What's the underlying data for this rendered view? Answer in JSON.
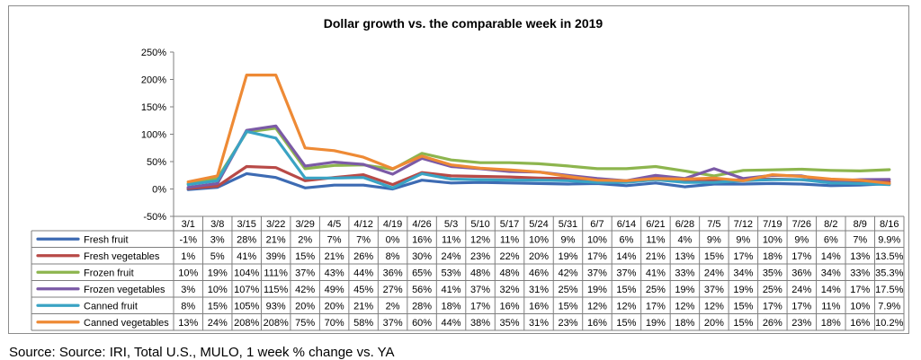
{
  "chart_data": {
    "type": "line",
    "title": "Dollar growth vs. the comparable week in 2019",
    "xlabel": "",
    "ylabel": "",
    "ylim": [
      -50,
      250
    ],
    "y_ticks": [
      "250%",
      "200%",
      "150%",
      "100%",
      "50%",
      "0%",
      "-50%"
    ],
    "y_tick_values": [
      250,
      200,
      150,
      100,
      50,
      0,
      -50
    ],
    "grid": false,
    "legend": "data-table-below",
    "categories": [
      "3/1",
      "3/8",
      "3/15",
      "3/22",
      "3/29",
      "4/5",
      "4/12",
      "4/19",
      "4/26",
      "5/3",
      "5/10",
      "5/17",
      "5/24",
      "5/31",
      "6/7",
      "6/14",
      "6/21",
      "6/28",
      "7/5",
      "7/12",
      "7/19",
      "7/26",
      "8/2",
      "8/9",
      "8/16"
    ],
    "series": [
      {
        "name": "Fresh fruit",
        "color": "#3d6bb3",
        "values": [
          -1,
          3,
          28,
          21,
          2,
          7,
          7,
          0,
          16,
          11,
          12,
          11,
          10,
          9,
          10,
          6,
          11,
          4,
          9,
          9,
          10,
          9,
          6,
          7,
          9.9
        ],
        "labels": [
          "-1%",
          "3%",
          "28%",
          "21%",
          "2%",
          "7%",
          "7%",
          "0%",
          "16%",
          "11%",
          "12%",
          "11%",
          "10%",
          "9%",
          "10%",
          "6%",
          "11%",
          "4%",
          "9%",
          "9%",
          "10%",
          "9%",
          "6%",
          "7%",
          "9.9%"
        ]
      },
      {
        "name": "Fresh vegetables",
        "color": "#b84a47",
        "values": [
          1,
          5,
          41,
          39,
          15,
          21,
          26,
          8,
          30,
          24,
          23,
          22,
          20,
          19,
          17,
          14,
          21,
          13,
          15,
          17,
          18,
          17,
          14,
          13,
          13.5
        ],
        "labels": [
          "1%",
          "5%",
          "41%",
          "39%",
          "15%",
          "21%",
          "26%",
          "8%",
          "30%",
          "24%",
          "23%",
          "22%",
          "20%",
          "19%",
          "17%",
          "14%",
          "21%",
          "13%",
          "15%",
          "17%",
          "18%",
          "17%",
          "14%",
          "13%",
          "13.5%"
        ]
      },
      {
        "name": "Frozen fruit",
        "color": "#8db54e",
        "values": [
          10,
          19,
          104,
          111,
          37,
          43,
          44,
          36,
          65,
          53,
          48,
          48,
          46,
          42,
          37,
          37,
          41,
          33,
          24,
          34,
          35,
          36,
          34,
          33,
          35.3
        ],
        "labels": [
          "10%",
          "19%",
          "104%",
          "111%",
          "37%",
          "43%",
          "44%",
          "36%",
          "65%",
          "53%",
          "48%",
          "48%",
          "46%",
          "42%",
          "37%",
          "37%",
          "41%",
          "33%",
          "24%",
          "34%",
          "35%",
          "36%",
          "34%",
          "33%",
          "35.3%"
        ]
      },
      {
        "name": "Frozen vegetables",
        "color": "#7b5aa6",
        "values": [
          3,
          10,
          107,
          115,
          42,
          49,
          45,
          27,
          56,
          41,
          37,
          32,
          31,
          25,
          19,
          15,
          25,
          19,
          37,
          19,
          25,
          24,
          14,
          17,
          17.5
        ],
        "labels": [
          "3%",
          "10%",
          "107%",
          "115%",
          "42%",
          "49%",
          "45%",
          "27%",
          "56%",
          "41%",
          "37%",
          "32%",
          "31%",
          "25%",
          "19%",
          "15%",
          "25%",
          "19%",
          "37%",
          "19%",
          "25%",
          "24%",
          "14%",
          "17%",
          "17.5%"
        ]
      },
      {
        "name": "Canned fruit",
        "color": "#3aa3c4",
        "values": [
          8,
          15,
          105,
          93,
          20,
          20,
          21,
          2,
          28,
          18,
          17,
          16,
          16,
          15,
          12,
          12,
          17,
          12,
          12,
          15,
          17,
          17,
          11,
          10,
          7.9
        ],
        "labels": [
          "8%",
          "15%",
          "105%",
          "93%",
          "20%",
          "20%",
          "21%",
          "2%",
          "28%",
          "18%",
          "17%",
          "16%",
          "16%",
          "15%",
          "12%",
          "12%",
          "17%",
          "12%",
          "12%",
          "15%",
          "17%",
          "17%",
          "11%",
          "10%",
          "7.9%"
        ]
      },
      {
        "name": "Canned vegetables",
        "color": "#ee8a35",
        "values": [
          13,
          24,
          208,
          208,
          75,
          70,
          58,
          37,
          60,
          44,
          38,
          35,
          31,
          23,
          16,
          15,
          19,
          18,
          20,
          15,
          26,
          23,
          18,
          16,
          10.2
        ],
        "labels": [
          "13%",
          "24%",
          "208%",
          "208%",
          "75%",
          "70%",
          "58%",
          "37%",
          "60%",
          "44%",
          "38%",
          "35%",
          "31%",
          "23%",
          "16%",
          "15%",
          "19%",
          "18%",
          "20%",
          "15%",
          "26%",
          "23%",
          "18%",
          "16%",
          "10.2%"
        ]
      }
    ]
  },
  "source": "Source: Source: IRI, Total U.S., MULO, 1 week % change vs. YA"
}
